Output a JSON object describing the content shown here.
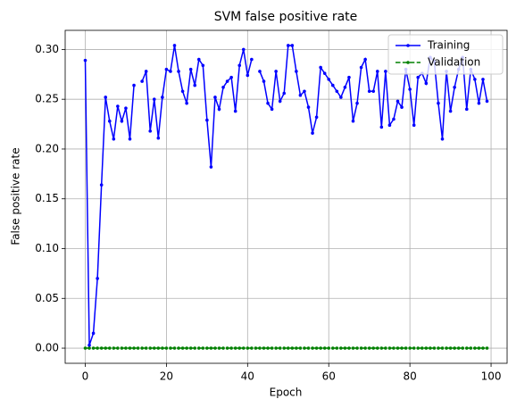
{
  "chart_data": {
    "type": "line",
    "title": "SVM false positive rate",
    "xlabel": "Epoch",
    "ylabel": "False positive rate",
    "x": [
      0,
      1,
      2,
      3,
      4,
      5,
      6,
      7,
      8,
      9,
      10,
      11,
      12,
      13,
      14,
      15,
      16,
      17,
      18,
      19,
      20,
      21,
      22,
      23,
      24,
      25,
      26,
      27,
      28,
      29,
      30,
      31,
      32,
      33,
      34,
      35,
      36,
      37,
      38,
      39,
      40,
      41,
      42,
      43,
      44,
      45,
      46,
      47,
      48,
      49,
      50,
      51,
      52,
      53,
      54,
      55,
      56,
      57,
      58,
      59,
      60,
      61,
      62,
      63,
      64,
      65,
      66,
      67,
      68,
      69,
      70,
      71,
      72,
      73,
      74,
      75,
      76,
      77,
      78,
      79,
      80,
      81,
      82,
      83,
      84,
      85,
      86,
      87,
      88,
      89,
      90,
      91,
      92,
      93,
      94,
      95,
      96,
      97,
      98,
      99
    ],
    "series": [
      {
        "name": "Training",
        "color": "#0000ff",
        "style": "solid",
        "values": [
          0.289,
          0.003,
          0.015,
          0.07,
          0.164,
          0.252,
          0.228,
          0.21,
          0.243,
          0.228,
          0.241,
          0.21,
          0.264,
          null,
          0.268,
          0.278,
          0.218,
          0.25,
          0.211,
          0.252,
          0.28,
          0.278,
          0.304,
          0.278,
          0.258,
          0.246,
          0.28,
          0.264,
          0.29,
          0.284,
          0.229,
          0.182,
          0.252,
          0.24,
          0.262,
          0.268,
          0.272,
          0.238,
          0.284,
          0.3,
          0.274,
          0.29,
          null,
          0.278,
          0.268,
          0.246,
          0.24,
          0.278,
          0.248,
          0.256,
          0.304,
          0.304,
          0.278,
          0.254,
          0.258,
          0.242,
          0.216,
          0.232,
          0.282,
          0.276,
          0.27,
          0.264,
          0.258,
          0.252,
          0.262,
          0.272,
          0.228,
          0.246,
          0.282,
          0.29,
          0.258,
          0.258,
          0.278,
          0.222,
          0.278,
          0.224,
          0.23,
          0.248,
          0.242,
          0.28,
          0.26,
          0.224,
          0.272,
          0.276,
          0.266,
          0.292,
          0.288,
          0.246,
          0.21,
          0.278,
          0.238,
          0.262,
          0.28,
          0.292,
          0.24,
          0.28,
          0.27,
          0.246,
          0.27,
          0.248
        ]
      },
      {
        "name": "Validation",
        "color": "#008000",
        "style": "dashed",
        "values": [
          0,
          0,
          0,
          0,
          0,
          0,
          0,
          0,
          0,
          0,
          0,
          0,
          0,
          0,
          0,
          0,
          0,
          0,
          0,
          0,
          0,
          0,
          0,
          0,
          0,
          0,
          0,
          0,
          0,
          0,
          0,
          0,
          0,
          0,
          0,
          0,
          0,
          0,
          0,
          0,
          0,
          0,
          0,
          0,
          0,
          0,
          0,
          0,
          0,
          0,
          0,
          0,
          0,
          0,
          0,
          0,
          0,
          0,
          0,
          0,
          0,
          0,
          0,
          0,
          0,
          0,
          0,
          0,
          0,
          0,
          0,
          0,
          0,
          0,
          0,
          0,
          0,
          0,
          0,
          0,
          0,
          0,
          0,
          0,
          0,
          0,
          0,
          0,
          0,
          0,
          0,
          0,
          0,
          0,
          0,
          0,
          0,
          0,
          0,
          0
        ]
      }
    ],
    "xlim": [
      -4.95,
      103.95
    ],
    "xticks": [
      0,
      20,
      40,
      60,
      80,
      100
    ],
    "ylim": [
      -0.0152,
      0.3192
    ],
    "yticks": [
      {
        "value": 0,
        "label": "0.00"
      },
      {
        "value": 0.05,
        "label": "0.05"
      },
      {
        "value": 0.1,
        "label": "0.10"
      },
      {
        "value": 0.15,
        "label": "0.15"
      },
      {
        "value": 0.2,
        "label": "0.20"
      },
      {
        "value": 0.25,
        "label": "0.25"
      },
      {
        "value": 0.3,
        "label": "0.30"
      }
    ],
    "grid": true,
    "legend": "upper right"
  }
}
